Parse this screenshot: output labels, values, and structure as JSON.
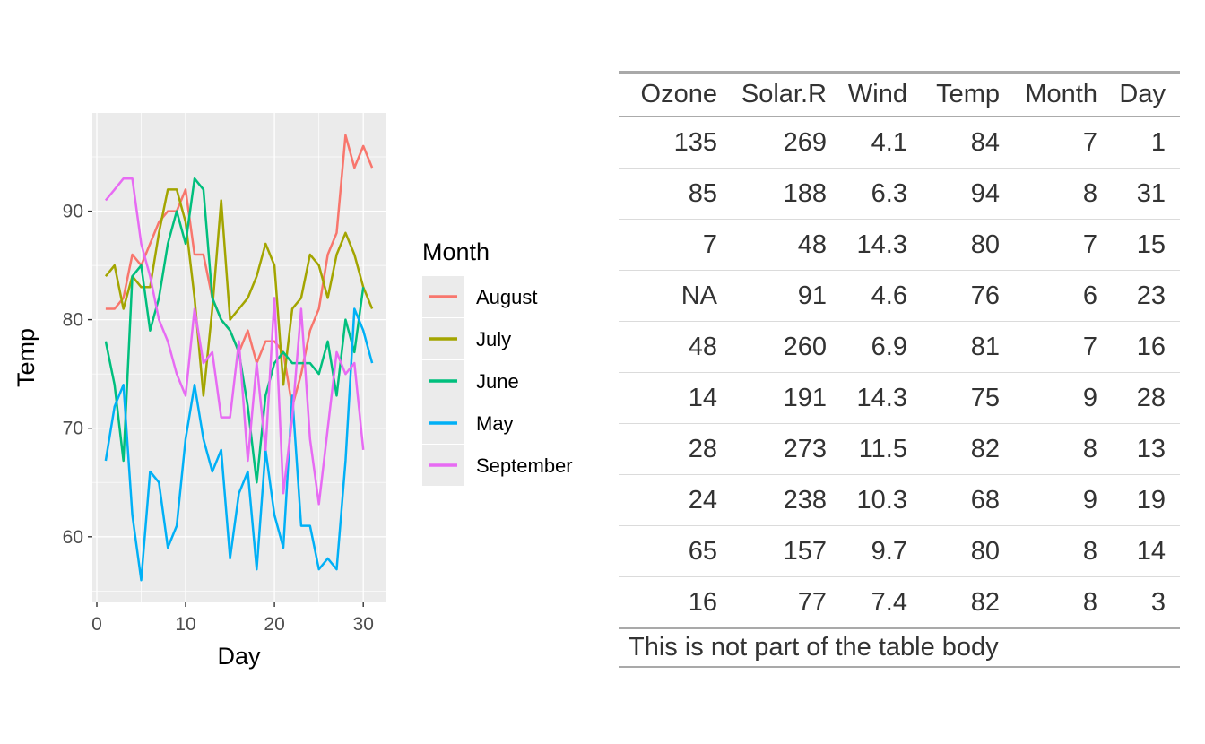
{
  "page": {
    "background": "#FFFFFF"
  },
  "chart_data": {
    "type": "line",
    "title": "",
    "xlabel": "Day",
    "ylabel": "Temp",
    "x_ticks": [
      0,
      10,
      20,
      30
    ],
    "y_ticks": [
      60,
      70,
      80,
      90
    ],
    "x_minor_gridlines": [
      5,
      15,
      25
    ],
    "y_minor_gridlines": [
      55,
      65,
      75,
      85,
      95
    ],
    "xlim": [
      -0.5,
      32.5
    ],
    "ylim": [
      53.95,
      99.05
    ],
    "x_note": "x values are consecutive days starting at 1 for every series",
    "legend": {
      "title": "Month",
      "position": "right",
      "key_background": "#EBEBEB"
    },
    "style": {
      "panel_background": "#EBEBEB",
      "grid_color": "#FFFFFF",
      "tick_label_color": "#4D4D4D",
      "tick_mark_color": "#333333",
      "axis_title_color": "#000000"
    },
    "series": [
      {
        "name": "August",
        "color": "#F8766D",
        "x_start": 1,
        "values": [
          81,
          81,
          82,
          86,
          85,
          87,
          89,
          90,
          90,
          92,
          86,
          86,
          82,
          80,
          79,
          77,
          79,
          76,
          78,
          78,
          77,
          72,
          75,
          79,
          81,
          86,
          88,
          97,
          94,
          96,
          94
        ]
      },
      {
        "name": "July",
        "color": "#A3A500",
        "x_start": 1,
        "values": [
          84,
          85,
          81,
          84,
          83,
          83,
          88,
          92,
          92,
          89,
          82,
          73,
          81,
          91,
          80,
          81,
          82,
          84,
          87,
          85,
          74,
          81,
          82,
          86,
          85,
          82,
          86,
          88,
          86,
          83,
          81
        ]
      },
      {
        "name": "June",
        "color": "#00BF7D",
        "x_start": 1,
        "values": [
          78,
          74,
          67,
          84,
          85,
          79,
          82,
          87,
          90,
          87,
          93,
          92,
          82,
          80,
          79,
          77,
          72,
          65,
          73,
          76,
          77,
          76,
          76,
          76,
          75,
          78,
          73,
          80,
          77,
          83
        ]
      },
      {
        "name": "May",
        "color": "#00B0F6",
        "x_start": 1,
        "values": [
          67,
          72,
          74,
          62,
          56,
          66,
          65,
          59,
          61,
          69,
          74,
          69,
          66,
          68,
          58,
          64,
          66,
          57,
          68,
          62,
          59,
          73,
          61,
          61,
          57,
          58,
          57,
          67,
          81,
          79,
          76
        ]
      },
      {
        "name": "September",
        "color": "#E76BF3",
        "x_start": 1,
        "values": [
          91,
          92,
          93,
          93,
          87,
          84,
          80,
          78,
          75,
          73,
          81,
          76,
          77,
          71,
          71,
          78,
          67,
          76,
          68,
          82,
          64,
          71,
          81,
          69,
          63,
          70,
          77,
          75,
          76,
          68
        ]
      }
    ]
  },
  "table": {
    "columns": [
      "Ozone",
      "Solar.R",
      "Wind",
      "Temp",
      "Month",
      "Day"
    ],
    "rows": [
      [
        "135",
        "269",
        "4.1",
        "84",
        "7",
        "1"
      ],
      [
        "85",
        "188",
        "6.3",
        "94",
        "8",
        "31"
      ],
      [
        "7",
        "48",
        "14.3",
        "80",
        "7",
        "15"
      ],
      [
        "NA",
        "91",
        "4.6",
        "76",
        "6",
        "23"
      ],
      [
        "48",
        "260",
        "6.9",
        "81",
        "7",
        "16"
      ],
      [
        "14",
        "191",
        "14.3",
        "75",
        "9",
        "28"
      ],
      [
        "28",
        "273",
        "11.5",
        "82",
        "8",
        "13"
      ],
      [
        "24",
        "238",
        "10.3",
        "68",
        "9",
        "19"
      ],
      [
        "65",
        "157",
        "9.7",
        "80",
        "8",
        "14"
      ],
      [
        "16",
        "77",
        "7.4",
        "82",
        "8",
        "3"
      ]
    ],
    "footer": "This is not part of the table body"
  }
}
